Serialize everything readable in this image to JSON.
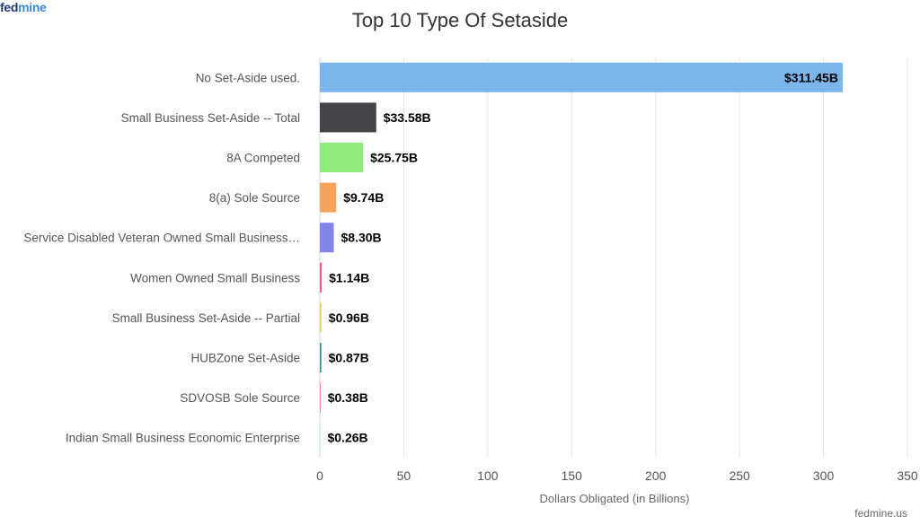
{
  "logo": {
    "part1": "fed",
    "part2": "mine"
  },
  "watermark": "fedmine.us",
  "chart_data": {
    "type": "bar",
    "orientation": "horizontal",
    "title": "Top 10 Type Of Setaside",
    "xlabel": "Dollars Obligated (in Billions)",
    "ylabel": "",
    "xlim": [
      0,
      350
    ],
    "xticks": [
      0,
      50,
      100,
      150,
      200,
      250,
      300,
      350
    ],
    "grid": true,
    "categories": [
      "No Set-Aside used.",
      "Small Business Set-Aside -- Total",
      "8A Competed",
      "8(a) Sole Source",
      "Service Disabled Veteran Owned Small Business…",
      "Women Owned Small Business",
      "Small Business Set-Aside -- Partial",
      "HUBZone Set-Aside",
      "SDVOSB Sole Source",
      "Indian Small Business Economic Enterprise"
    ],
    "values": [
      311.45,
      33.58,
      25.75,
      9.74,
      8.3,
      1.14,
      0.96,
      0.87,
      0.38,
      0.26
    ],
    "value_labels": [
      "$311.45B",
      "$33.58B",
      "$25.75B",
      "$9.74B",
      "$8.30B",
      "$1.14B",
      "$0.96B",
      "$0.87B",
      "$0.38B",
      "$0.26B"
    ],
    "colors": [
      "#7cb5ec",
      "#434348",
      "#90ed7d",
      "#f7a35c",
      "#8085e9",
      "#f15c80",
      "#e4d354",
      "#2b908f",
      "#f45b5b",
      "#91e8e1"
    ]
  }
}
